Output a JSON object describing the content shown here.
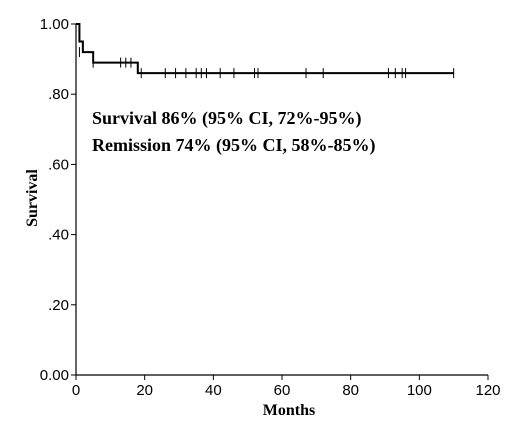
{
  "chart_data": {
    "type": "line",
    "title": "",
    "xlabel": "Months",
    "ylabel": "Survival",
    "xlim": [
      0,
      120
    ],
    "ylim": [
      0,
      1
    ],
    "x_ticks": [
      0,
      20,
      40,
      60,
      80,
      100,
      120
    ],
    "x_tick_labels": [
      "0",
      "20",
      "40",
      "60",
      "80",
      "100",
      "120"
    ],
    "y_ticks": [
      0,
      0.2,
      0.4,
      0.6,
      0.8,
      1.0
    ],
    "y_tick_labels": [
      "0.00",
      ".20",
      ".40",
      ".60",
      ".80",
      "1.00"
    ],
    "grid": false,
    "legend": "none",
    "annotations": [
      "Survival 86% (95% CI, 72%-95%)",
      "Remission 74% (95% CI, 58%-85%)"
    ],
    "series": [
      {
        "step": true,
        "color": "#000000",
        "x": [
          0,
          1,
          1,
          2,
          2,
          5,
          5,
          18,
          18,
          110
        ],
        "y": [
          1.0,
          1.0,
          0.95,
          0.95,
          0.92,
          0.92,
          0.89,
          0.89,
          0.86,
          0.86
        ],
        "censored": [
          {
            "x": 1,
            "y": 0.92
          },
          {
            "x": 5,
            "y": 0.89
          },
          {
            "x": 13,
            "y": 0.89
          },
          {
            "x": 14.5,
            "y": 0.89
          },
          {
            "x": 16,
            "y": 0.89
          },
          {
            "x": 19,
            "y": 0.86
          },
          {
            "x": 26,
            "y": 0.86
          },
          {
            "x": 29,
            "y": 0.86
          },
          {
            "x": 32,
            "y": 0.86
          },
          {
            "x": 35,
            "y": 0.86
          },
          {
            "x": 36.5,
            "y": 0.86
          },
          {
            "x": 38,
            "y": 0.86
          },
          {
            "x": 42,
            "y": 0.86
          },
          {
            "x": 46,
            "y": 0.86
          },
          {
            "x": 52,
            "y": 0.86
          },
          {
            "x": 53,
            "y": 0.86
          },
          {
            "x": 67,
            "y": 0.86
          },
          {
            "x": 72,
            "y": 0.86
          },
          {
            "x": 91,
            "y": 0.86
          },
          {
            "x": 93,
            "y": 0.86
          },
          {
            "x": 95,
            "y": 0.86
          },
          {
            "x": 96,
            "y": 0.86
          },
          {
            "x": 110,
            "y": 0.86
          }
        ]
      }
    ]
  }
}
